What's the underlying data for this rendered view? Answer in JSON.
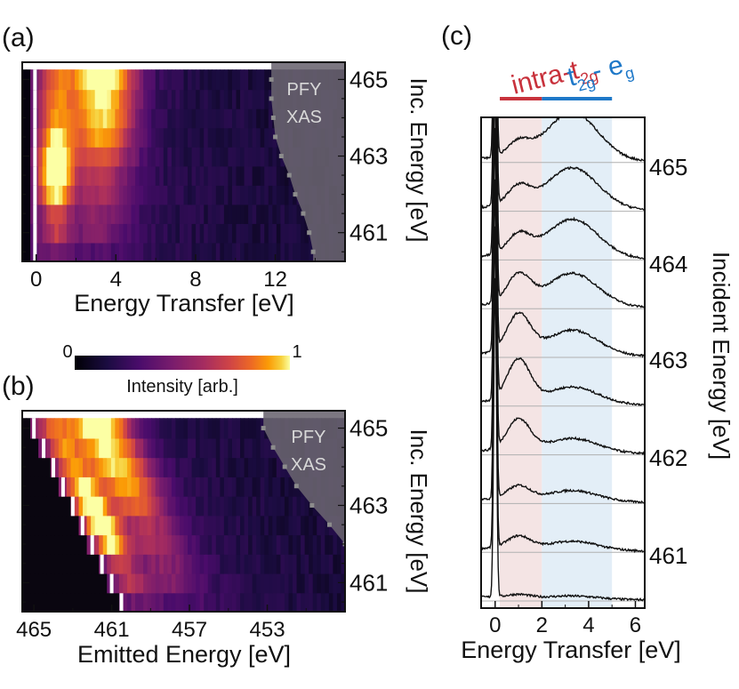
{
  "chart_data": [
    {
      "panel": "a",
      "panel_label": "(a)",
      "type": "heatmap",
      "xlabel": "Energy Transfer [eV]",
      "ylabel": "Inc. Energy [eV]",
      "x_ticks": [
        "0",
        "4",
        "8",
        "12"
      ],
      "x_tick_values": [
        0,
        4,
        8,
        12
      ],
      "y_ticks": [
        "465",
        "463",
        "461"
      ],
      "y_tick_values": [
        465,
        463,
        461
      ],
      "xlim": [
        -0.7,
        15.5
      ],
      "ylim": [
        460.25,
        465.45
      ],
      "incident_energies": [
        460.5,
        461.0,
        461.5,
        462.0,
        462.5,
        463.0,
        463.5,
        464.0,
        464.5,
        465.0
      ],
      "overlay_label": [
        "PFY",
        "XAS"
      ],
      "pfy_edge_x": [
        13.9,
        13.7,
        13.4,
        13.0,
        12.7,
        12.3,
        12.0,
        11.9,
        11.8,
        11.8
      ],
      "colorscale": "inferno"
    },
    {
      "panel": "b",
      "panel_label": "(b)",
      "type": "heatmap",
      "xlabel": "Emitted Energy [eV]",
      "ylabel": "Inc. Energy [eV]",
      "x_ticks": [
        "465",
        "461",
        "457",
        "453"
      ],
      "x_tick_values": [
        465,
        461,
        457,
        453
      ],
      "y_ticks": [
        "465",
        "463",
        "461"
      ],
      "y_tick_values": [
        465,
        463,
        461
      ],
      "xlim": [
        465.6,
        449.0
      ],
      "ylim": [
        460.25,
        465.45
      ],
      "overlay_label": [
        "PFY",
        "XAS"
      ],
      "colorbar": {
        "label": "Intensity [arb.]",
        "min": "0",
        "max": "1"
      }
    },
    {
      "panel": "c",
      "panel_label": "(c)",
      "type": "line",
      "xlabel": "Energy Transfer [eV]",
      "ylabel": "Incident Energy [eV]",
      "x_ticks": [
        "0",
        "2",
        "4",
        "6"
      ],
      "x_tick_values": [
        0,
        2,
        4,
        6
      ],
      "right_ticks": [
        "465",
        "464",
        "463",
        "462",
        "461"
      ],
      "xlim": [
        -0.6,
        6.4
      ],
      "bands": [
        {
          "label": "intra-t",
          "sub": "2g",
          "x": [
            0.2,
            2.0
          ],
          "color": "#c8323c",
          "fill": "#f4e4e4"
        },
        {
          "label": "t",
          "sub": "2g",
          "label2": "- e",
          "sub2": "g",
          "x": [
            2.0,
            5.0
          ],
          "color": "#1e78c8",
          "fill": "#e3eef7"
        }
      ],
      "incident_energies": [
        460.5,
        461.0,
        461.5,
        462.0,
        462.5,
        463.0,
        463.5,
        464.0,
        464.5,
        465.0
      ],
      "spectra_peaks": [
        {
          "lowE": 0.05,
          "highE": 0.05
        },
        {
          "lowE": 0.18,
          "highE": 0.14
        },
        {
          "lowE": 0.2,
          "highE": 0.17
        },
        {
          "lowE": 0.45,
          "highE": 0.22
        },
        {
          "lowE": 0.6,
          "highE": 0.26
        },
        {
          "lowE": 0.55,
          "highE": 0.38
        },
        {
          "lowE": 0.42,
          "highE": 0.5
        },
        {
          "lowE": 0.3,
          "highE": 0.58
        },
        {
          "lowE": 0.28,
          "highE": 0.62
        },
        {
          "lowE": 0.22,
          "highE": 0.72
        }
      ]
    }
  ]
}
